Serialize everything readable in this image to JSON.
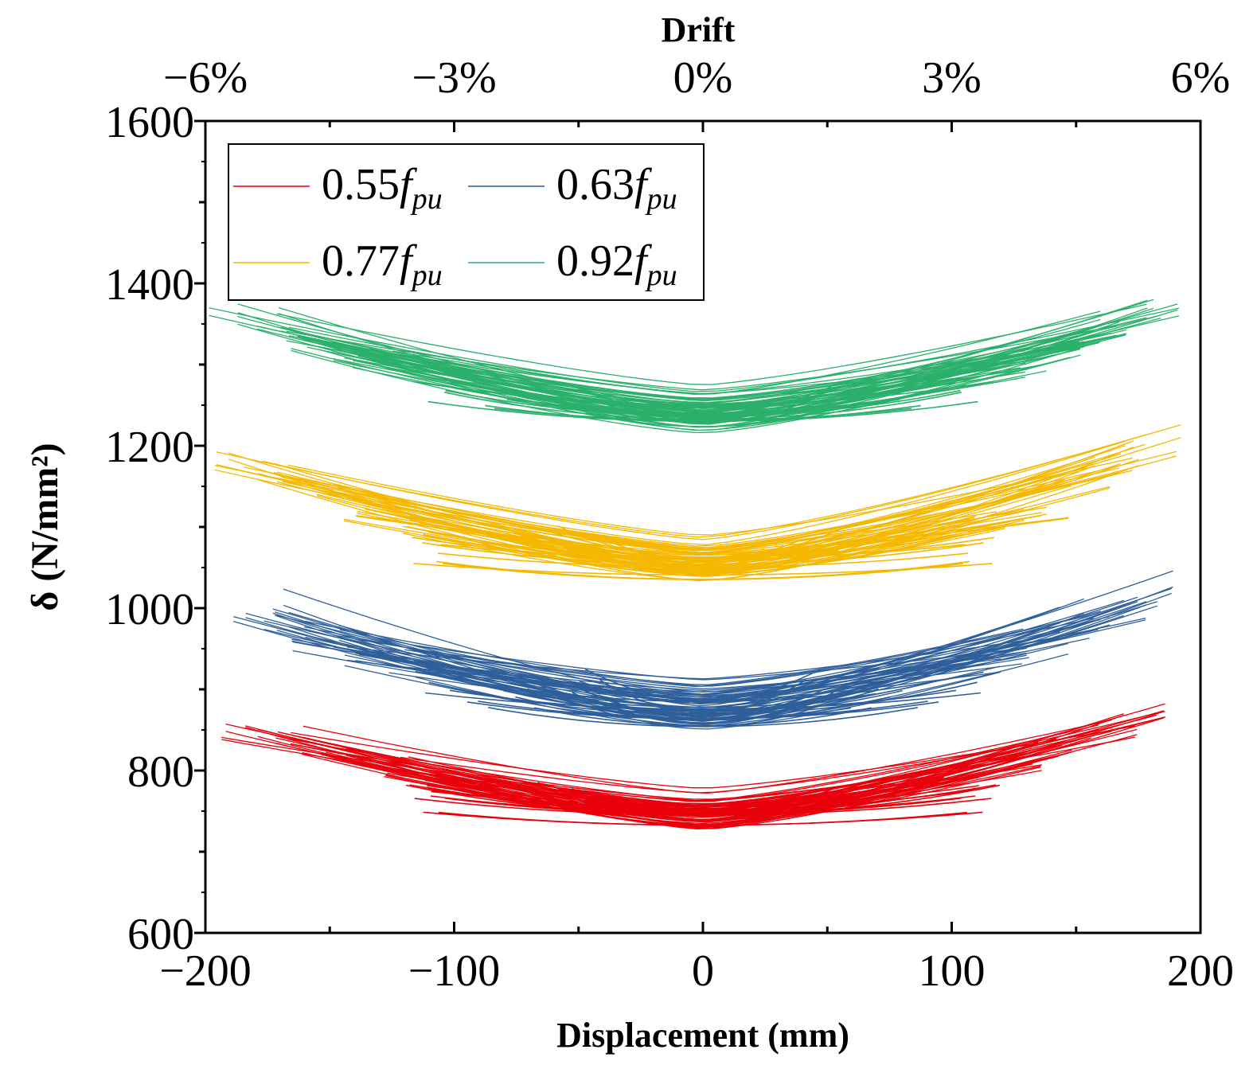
{
  "chart_data": {
    "type": "line",
    "title": "",
    "xlabel": "Displacement (mm)",
    "ylabel": "δ (N/mm²)",
    "top_xlabel": "Drift",
    "xlim": [
      -200,
      200
    ],
    "ylim": [
      600,
      1600
    ],
    "xticks": [
      "−200",
      "−100",
      "0",
      "100",
      "200"
    ],
    "yticks": [
      "600",
      "800",
      "1000",
      "1200",
      "1400",
      "1600"
    ],
    "top_xticks": [
      "−6%",
      "−3%",
      "0%",
      "3%",
      "6%"
    ],
    "legend_position": "top-left",
    "series": [
      {
        "name": "0.55fpu",
        "legend_main": "0.55",
        "legend_f": "f",
        "legend_sub": "pu",
        "color": "#e8000b",
        "base": 725,
        "amplitudes": [
          199,
          180,
          158,
          138,
          112
        ],
        "left_end": [
          855,
          835,
          820,
          800,
          785
        ],
        "right_end": [
          875,
          850,
          835,
          815,
          800
        ],
        "loop_band": 40
      },
      {
        "name": "0.63fpu",
        "legend_main": "0.63",
        "legend_f": "f",
        "legend_sub": "pu",
        "color": "#2e5f9a",
        "base": 840,
        "amplitudes": [
          196,
          180,
          168,
          148,
          132
        ],
        "left_end": [
          995,
          975,
          960,
          940,
          925
        ],
        "right_end": [
          1015,
          990,
          975,
          950,
          930
        ],
        "loop_band": 60
      },
      {
        "name": "0.77fpu",
        "legend_main": "0.77",
        "legend_f": "f",
        "legend_sub": "pu",
        "color": "#f5b800",
        "base": 1025,
        "amplitudes": [
          199,
          182,
          165,
          148,
          125
        ],
        "left_end": [
          1178,
          1165,
          1150,
          1125,
          1105
        ],
        "right_end": [
          1200,
          1175,
          1160,
          1125,
          1100
        ],
        "loop_band": 55
      },
      {
        "name": "0.92fpu",
        "legend_main": "0.92",
        "legend_f": "f",
        "legend_sub": "pu",
        "color": "#2ab06a",
        "base": 1212,
        "amplitudes": [
          199,
          182,
          168,
          155,
          145
        ],
        "left_end": [
          1360,
          1345,
          1330,
          1315,
          1305
        ],
        "right_end": [
          1372,
          1355,
          1340,
          1320,
          1295
        ],
        "loop_band": 50
      }
    ]
  }
}
